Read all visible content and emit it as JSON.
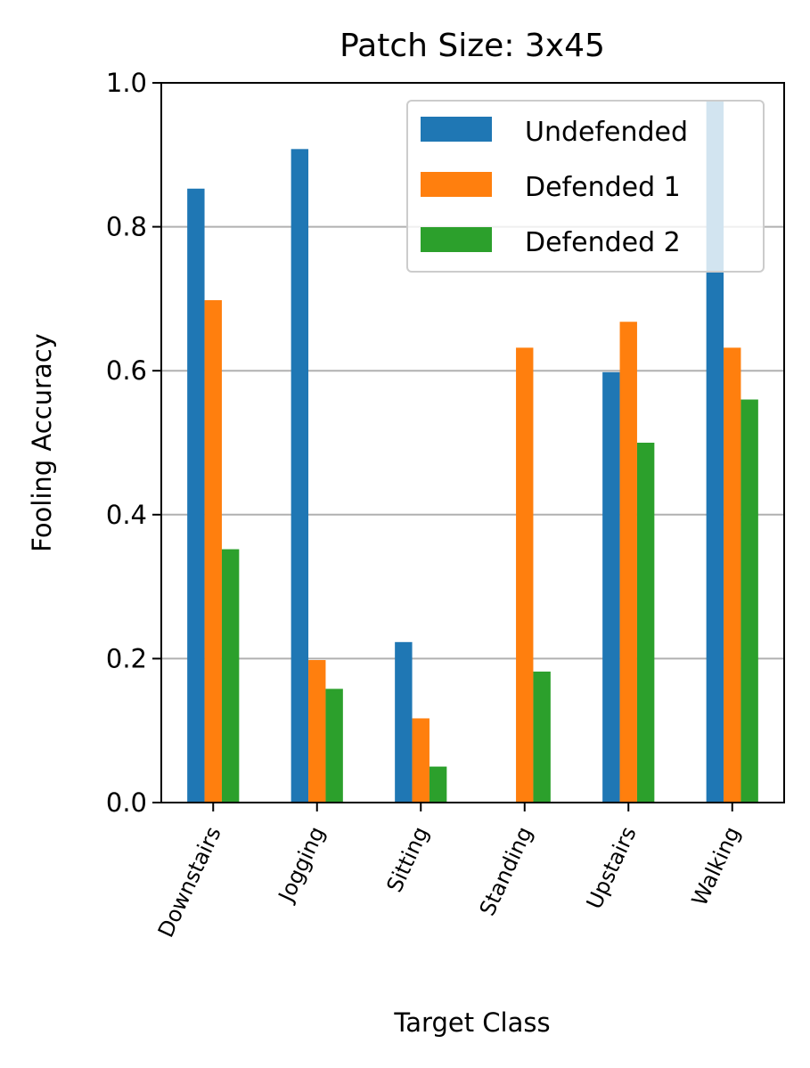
{
  "chart_data": {
    "type": "bar",
    "title": "Patch Size: 3x45",
    "xlabel": "Target Class",
    "ylabel": "Fooling Accuracy",
    "categories": [
      "Downstairs",
      "Jogging",
      "Sitting",
      "Standing",
      "Upstairs",
      "Walking"
    ],
    "series": [
      {
        "name": "Undefended",
        "color": "#1f77b4",
        "values": [
          0.853,
          0.908,
          0.223,
          0.0,
          0.598,
          0.975
        ]
      },
      {
        "name": "Defended 1",
        "color": "#ff7f0e",
        "values": [
          0.698,
          0.198,
          0.117,
          0.632,
          0.668,
          0.632
        ]
      },
      {
        "name": "Defended 2",
        "color": "#2ca02c",
        "values": [
          0.352,
          0.158,
          0.05,
          0.182,
          0.5,
          0.56
        ]
      }
    ],
    "ylim": [
      0,
      1.0
    ],
    "yticks": [
      "0.0",
      "0.2",
      "0.4",
      "0.6",
      "0.8",
      "1.0"
    ],
    "grid": "y",
    "legend_position": "top-right"
  }
}
